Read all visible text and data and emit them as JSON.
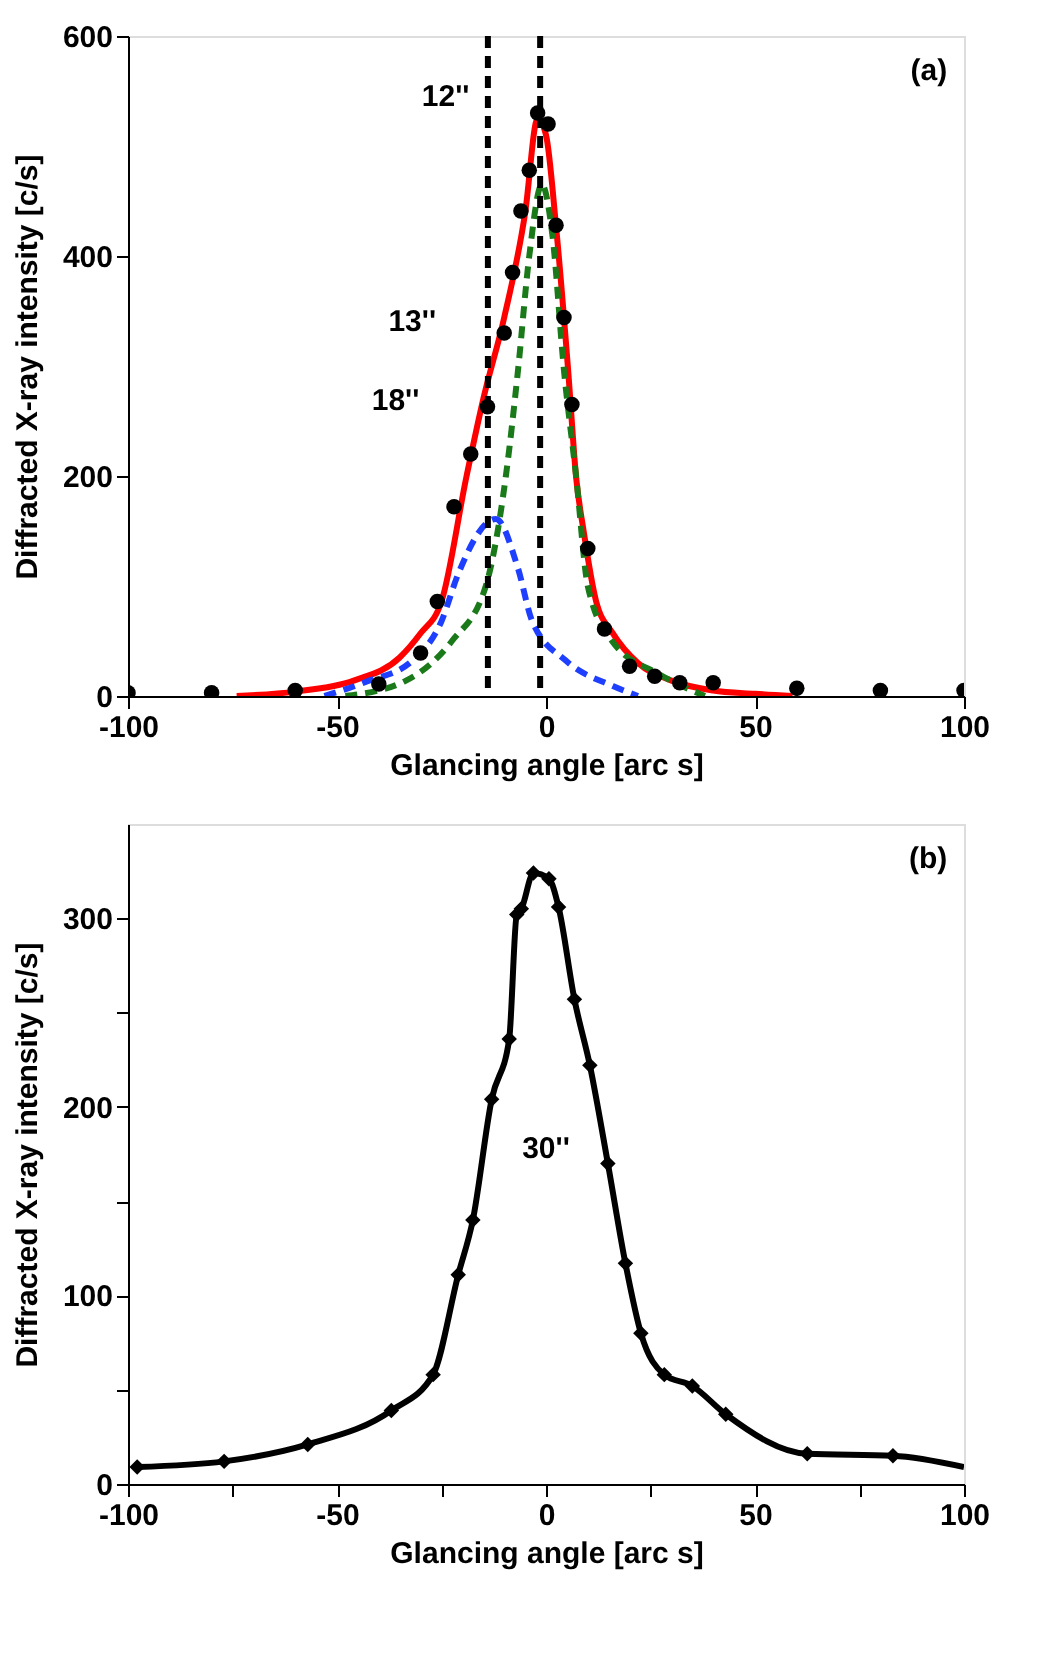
{
  "chart_data": [
    {
      "type": "line",
      "xlabel": "Glancing angle [arc s]",
      "ylabel": "Diffracted X-ray intensity [c/s]",
      "xlim": [
        -100,
        100
      ],
      "ylim": [
        0,
        600
      ],
      "xticks": [
        -100,
        -50,
        0,
        50,
        100
      ],
      "yticks": [
        0,
        200,
        400,
        600
      ],
      "grid": false,
      "series": [
        {
          "type": "line",
          "color": "#ff0000",
          "line_style": "solid",
          "marker": "none",
          "x": [
            -74,
            -60,
            -46,
            -35,
            -30,
            -25,
            -19,
            -15,
            -10,
            -5,
            -2,
            0,
            2.4,
            5.3,
            7.2,
            9,
            12,
            16,
            22,
            30,
            40,
            50,
            59
          ],
          "values": [
            0,
            4,
            14,
            35,
            57,
            86,
            200,
            270,
            344,
            439,
            525,
            510,
            427,
            296,
            199,
            150,
            86,
            57,
            30,
            14,
            5,
            2,
            0
          ]
        },
        {
          "type": "line",
          "color": "#1a7a1a",
          "line_style": "dashed",
          "marker": "none",
          "x": [
            -48,
            -33.5,
            -22.5,
            -14.4,
            -9.6,
            -6.7,
            -4,
            -1,
            1.5,
            4.3,
            7.2,
            10,
            15.8,
            27,
            38
          ],
          "values": [
            0,
            14,
            50,
            100,
            200,
            296,
            400,
            465,
            420,
            296,
            200,
            100,
            50,
            20,
            0
          ]
        },
        {
          "type": "line",
          "color": "#1f3fff",
          "line_style": "dashed",
          "marker": "none",
          "x": [
            -53,
            -43,
            -32,
            -25,
            -21,
            -12,
            -6.7,
            -3.3,
            4.8,
            16,
            22
          ],
          "values": [
            0,
            13,
            32,
            68,
            111,
            161,
            116,
            68,
            32,
            9,
            0
          ]
        },
        {
          "type": "scatter",
          "color": "#000000",
          "marker": "circle",
          "x": [
            -100,
            -80,
            -60,
            -40,
            -30,
            -26,
            -22,
            -18,
            -14,
            -10,
            -8,
            -6,
            -4,
            -2,
            0.5,
            2.4,
            4.3,
            6.2,
            10,
            14,
            20,
            26,
            32,
            40,
            60,
            80,
            100
          ],
          "values": [
            3,
            3,
            5,
            11,
            39,
            86,
            172,
            220,
            263,
            330,
            385,
            441,
            478,
            530,
            520,
            428,
            344,
            265,
            134,
            61,
            27,
            18,
            12,
            12,
            7,
            5,
            5
          ]
        }
      ],
      "ref_lines": [
        {
          "axis": "x",
          "value": -13.9,
          "color": "#000000",
          "line_style": "dashed"
        },
        {
          "axis": "x",
          "value": -1.4,
          "color": "#000000",
          "line_style": "dashed"
        }
      ],
      "annotations": [
        "(a)",
        "12''",
        "13''",
        "18''"
      ]
    },
    {
      "type": "line",
      "xlabel": "Glancing angle [arc s]",
      "ylabel": "Diffracted X-ray intensity [c/s]",
      "xlim": [
        -100,
        100
      ],
      "ylim": [
        0,
        350
      ],
      "xticks": [
        -100,
        {
          "value": -75,
          "label": null
        },
        -50,
        {
          "value": -25,
          "label": null
        },
        0,
        {
          "value": 25,
          "label": null
        },
        50,
        {
          "value": 75,
          "label": null
        },
        100
      ],
      "yticks": [
        0,
        {
          "value": 50,
          "label": null
        },
        100,
        {
          "value": 150,
          "label": null
        },
        200,
        {
          "value": 250,
          "label": null
        },
        300
      ],
      "grid": false,
      "series": [
        {
          "type": "line",
          "color": "#000000",
          "line_style": "solid",
          "marker": "none",
          "x": [
            -97.8,
            -77,
            -57,
            -37,
            -27,
            -21,
            -17.5,
            -13,
            -8.8,
            -7,
            -5.9,
            -3,
            0.7,
            3,
            6.8,
            10.5,
            14.8,
            19,
            22.7,
            28.3,
            35,
            43,
            62.5,
            83,
            100
          ],
          "values": [
            9,
            12,
            21,
            39,
            58,
            111,
            140,
            204,
            236,
            302,
            305,
            324,
            321,
            306,
            257,
            222,
            170,
            117,
            80,
            58,
            52,
            37,
            16,
            15,
            9
          ]
        },
        {
          "type": "scatter",
          "color": "#000000",
          "marker": "diamond",
          "x": [
            -97.8,
            -77,
            -57,
            -37,
            -27,
            -21,
            -17.5,
            -13,
            -8.8,
            -7,
            -5.9,
            -3,
            0.7,
            3,
            6.8,
            10.5,
            14.8,
            19,
            22.7,
            28.3,
            35,
            43,
            62.5,
            83
          ],
          "values": [
            9,
            12,
            21,
            39,
            58,
            111,
            140,
            204,
            236,
            302,
            305,
            324,
            321,
            306,
            257,
            222,
            170,
            117,
            80,
            58,
            52,
            37,
            16,
            15
          ]
        }
      ],
      "annotations": [
        "(b)",
        "30''"
      ]
    }
  ]
}
